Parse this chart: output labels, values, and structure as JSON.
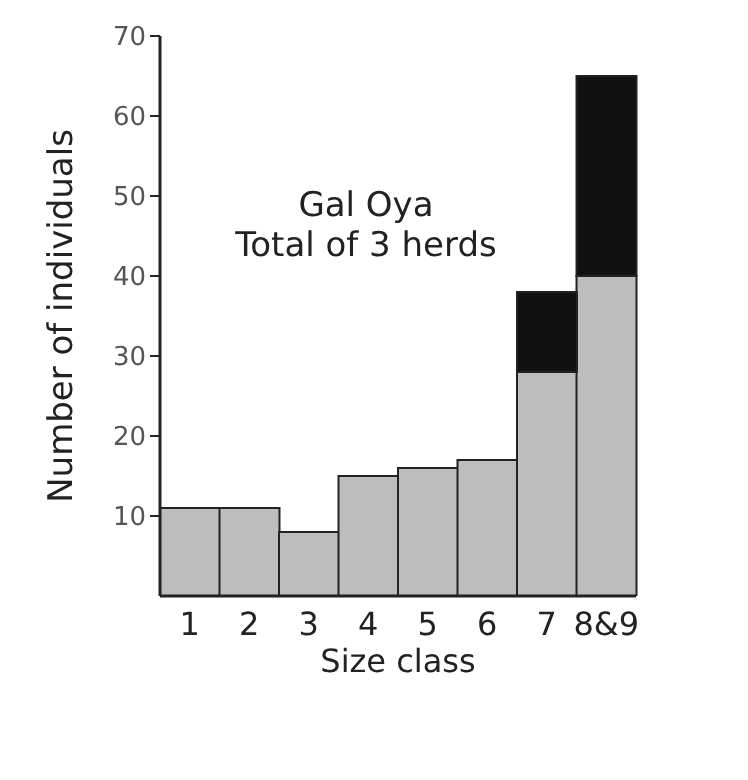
{
  "chart_data": {
    "type": "bar",
    "title": "Gal Oya",
    "subtitle": "Total of 3 herds",
    "xlabel": "Size class",
    "ylabel": "Number of individuals",
    "categories": [
      "1",
      "2",
      "3",
      "4",
      "5",
      "6",
      "7",
      "8&9"
    ],
    "series": [
      {
        "color": "#bdbdbd",
        "values": [
          11,
          11,
          8,
          15,
          16,
          17,
          28,
          40
        ]
      },
      {
        "color": "#111111",
        "values": [
          0,
          0,
          0,
          0,
          0,
          0,
          10,
          25
        ]
      }
    ],
    "stacked": true,
    "ylim": [
      0,
      70
    ],
    "yticks": [
      10,
      20,
      30,
      40,
      50,
      60,
      70
    ],
    "grid": false,
    "legend": false
  }
}
